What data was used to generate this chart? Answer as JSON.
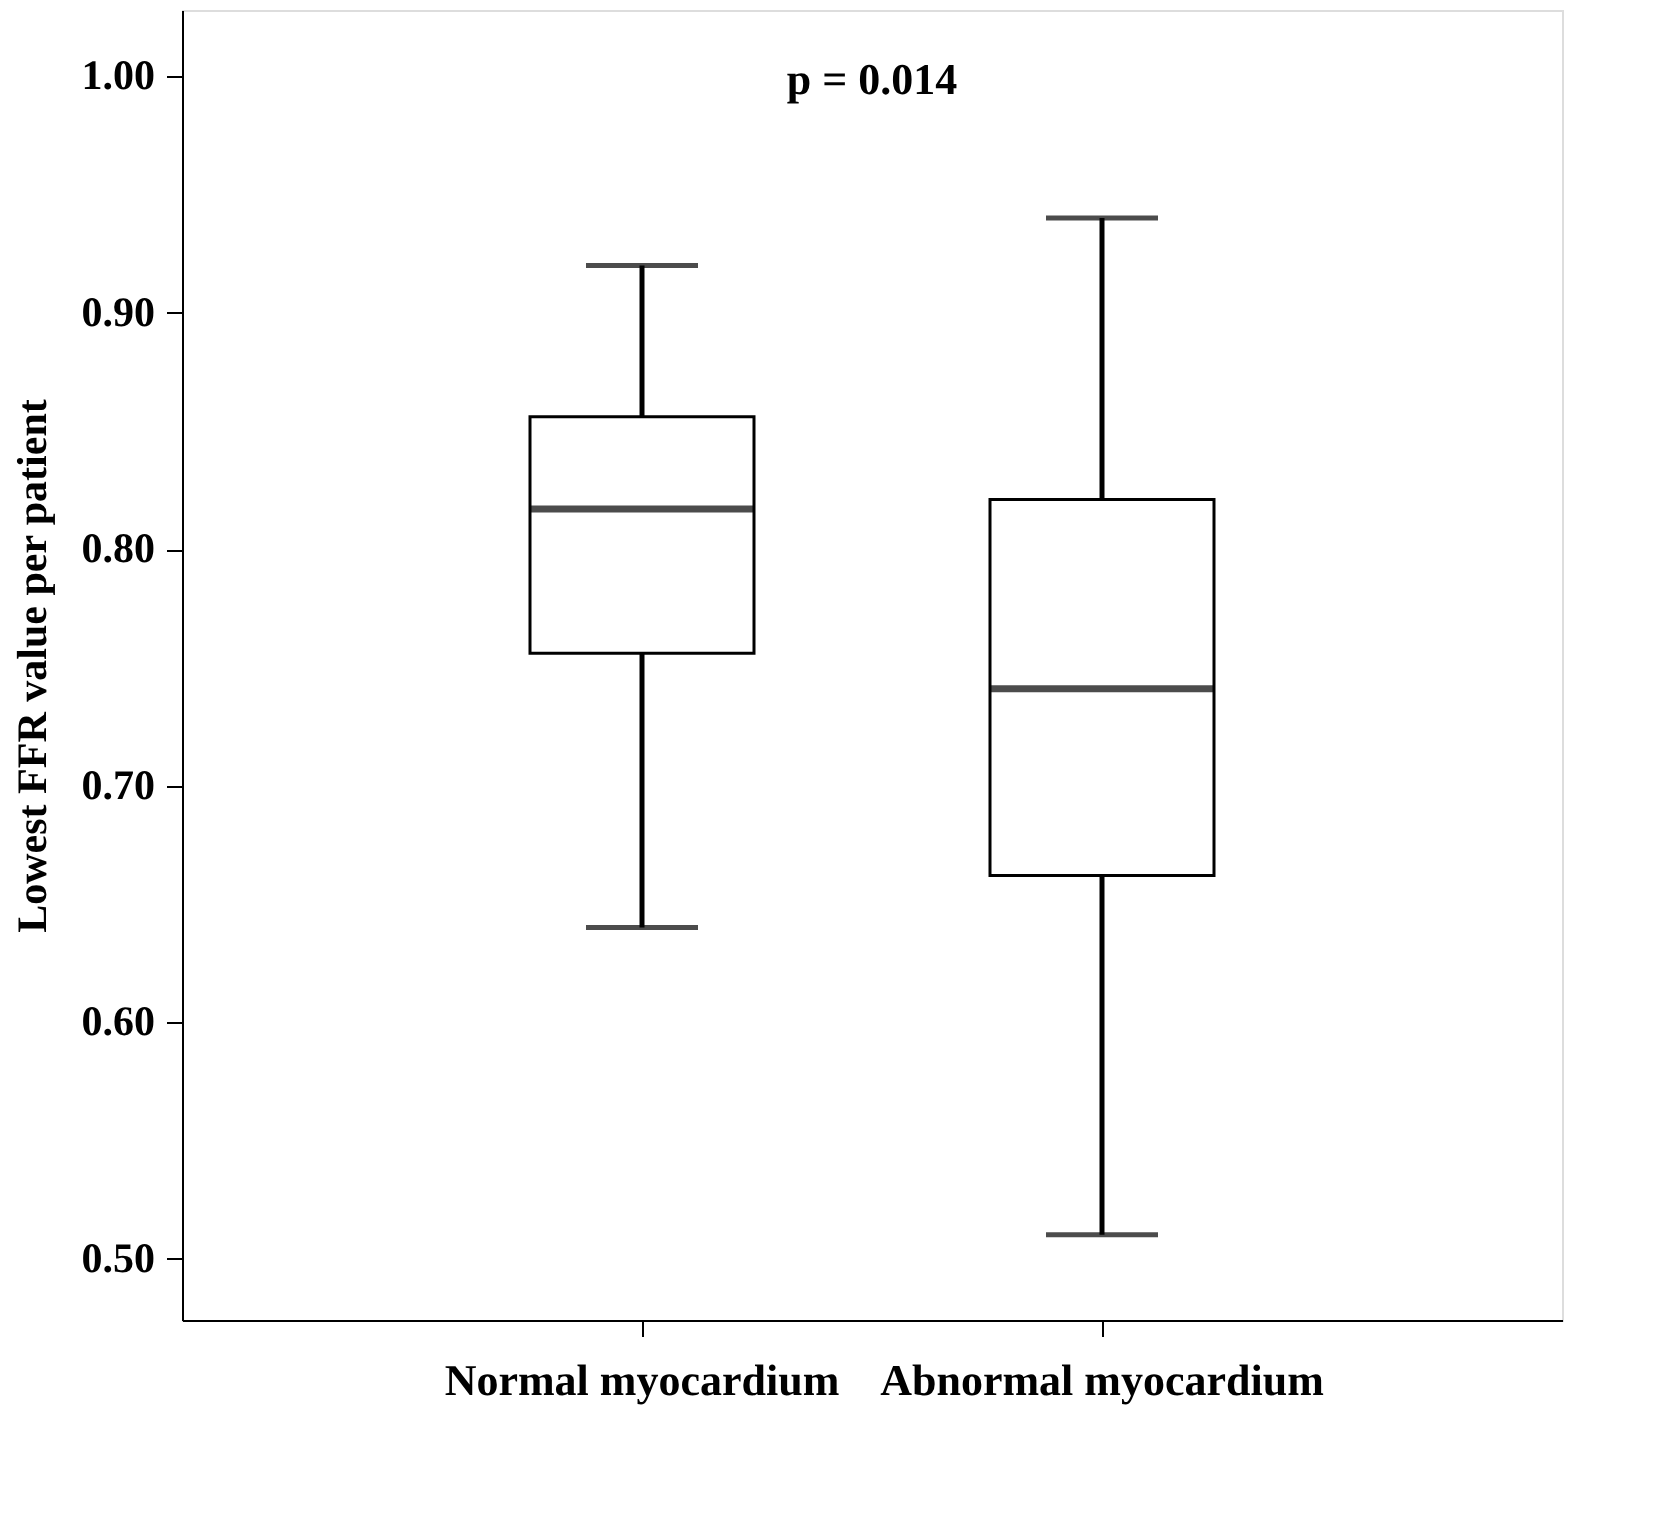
{
  "chart_data": {
    "type": "box",
    "categories": [
      "Normal myocardium",
      "Abnormal myocardium"
    ],
    "boxes": [
      {
        "low": 0.64,
        "q1": 0.756,
        "median": 0.817,
        "q3": 0.856,
        "high": 0.92
      },
      {
        "low": 0.51,
        "q1": 0.662,
        "median": 0.741,
        "q3": 0.821,
        "high": 0.94
      }
    ],
    "color": "#ffffff",
    "ylabel": "Lowest FFR value per patient",
    "annotations": [
      "p = 0.014"
    ],
    "ylim": [
      0.474,
      1.028
    ],
    "yticks": [
      {
        "value": 0.5,
        "label": "0.50"
      },
      {
        "value": 0.6,
        "label": "0.60"
      },
      {
        "value": 0.7,
        "label": "0.70"
      },
      {
        "value": 0.8,
        "label": "0.80"
      },
      {
        "value": 0.9,
        "label": "0.90"
      },
      {
        "value": 1.0,
        "label": "1.00"
      }
    ]
  }
}
